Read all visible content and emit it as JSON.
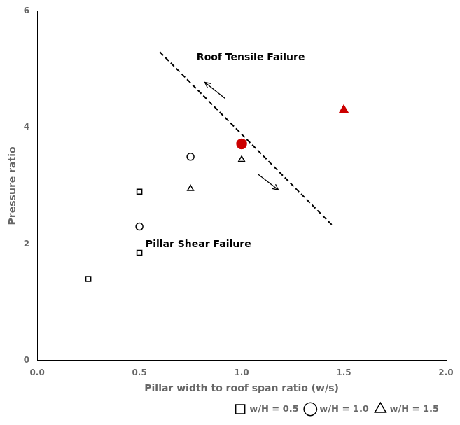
{
  "chart_data": {
    "type": "scatter",
    "xlabel": "Pillar width to roof span ratio (w/s)",
    "ylabel": "Pressure ratio",
    "xlim": [
      0,
      2
    ],
    "ylim": [
      0,
      6
    ],
    "xticks": [
      {
        "value": 0,
        "label": "0.0"
      },
      0.5,
      {
        "value": 1.0,
        "label": "1.0"
      },
      1.5,
      {
        "value": 2.0,
        "label": "2.0"
      }
    ],
    "yticks": [
      0,
      2,
      4,
      6
    ],
    "grid": false,
    "legend": "lower right",
    "series": [
      {
        "name": "w/H = 0.5",
        "marker": "open-square",
        "color": "black",
        "x": [
          0.25,
          0.5,
          0.5
        ],
        "values": [
          1.4,
          1.85,
          2.9
        ]
      },
      {
        "name": "w/H = 1.0",
        "marker": "open-circle",
        "color": "black",
        "x": [
          0.5,
          0.75
        ],
        "values": [
          2.3,
          3.5
        ]
      },
      {
        "name": "w/H = 1.5",
        "marker": "open-triangle",
        "color": "black",
        "x": [
          0.75,
          1.0
        ],
        "values": [
          2.95,
          3.45
        ]
      },
      {
        "marker": "filled-circle",
        "color": "#cc0000",
        "x": [
          1.0
        ],
        "values": [
          3.72
        ]
      },
      {
        "marker": "filled-triangle",
        "color": "#cc0000",
        "x": [
          1.5
        ],
        "values": [
          4.3
        ]
      },
      {
        "type": "line",
        "line_style": "dashed",
        "color": "black",
        "x": [
          0.6,
          1.45
        ],
        "values": [
          5.3,
          2.3
        ]
      }
    ],
    "annotations": [
      {
        "text": "Roof Tensile Failure",
        "x": 0.78,
        "y": 5.12
      },
      {
        "text": "Pillar Shear Failure",
        "x": 0.53,
        "y": 2.08
      }
    ],
    "arrows": [
      {
        "from": [
          0.92,
          4.5
        ],
        "to": [
          0.82,
          4.78
        ]
      },
      {
        "from": [
          1.08,
          3.2
        ],
        "to": [
          1.18,
          2.93
        ]
      }
    ]
  }
}
